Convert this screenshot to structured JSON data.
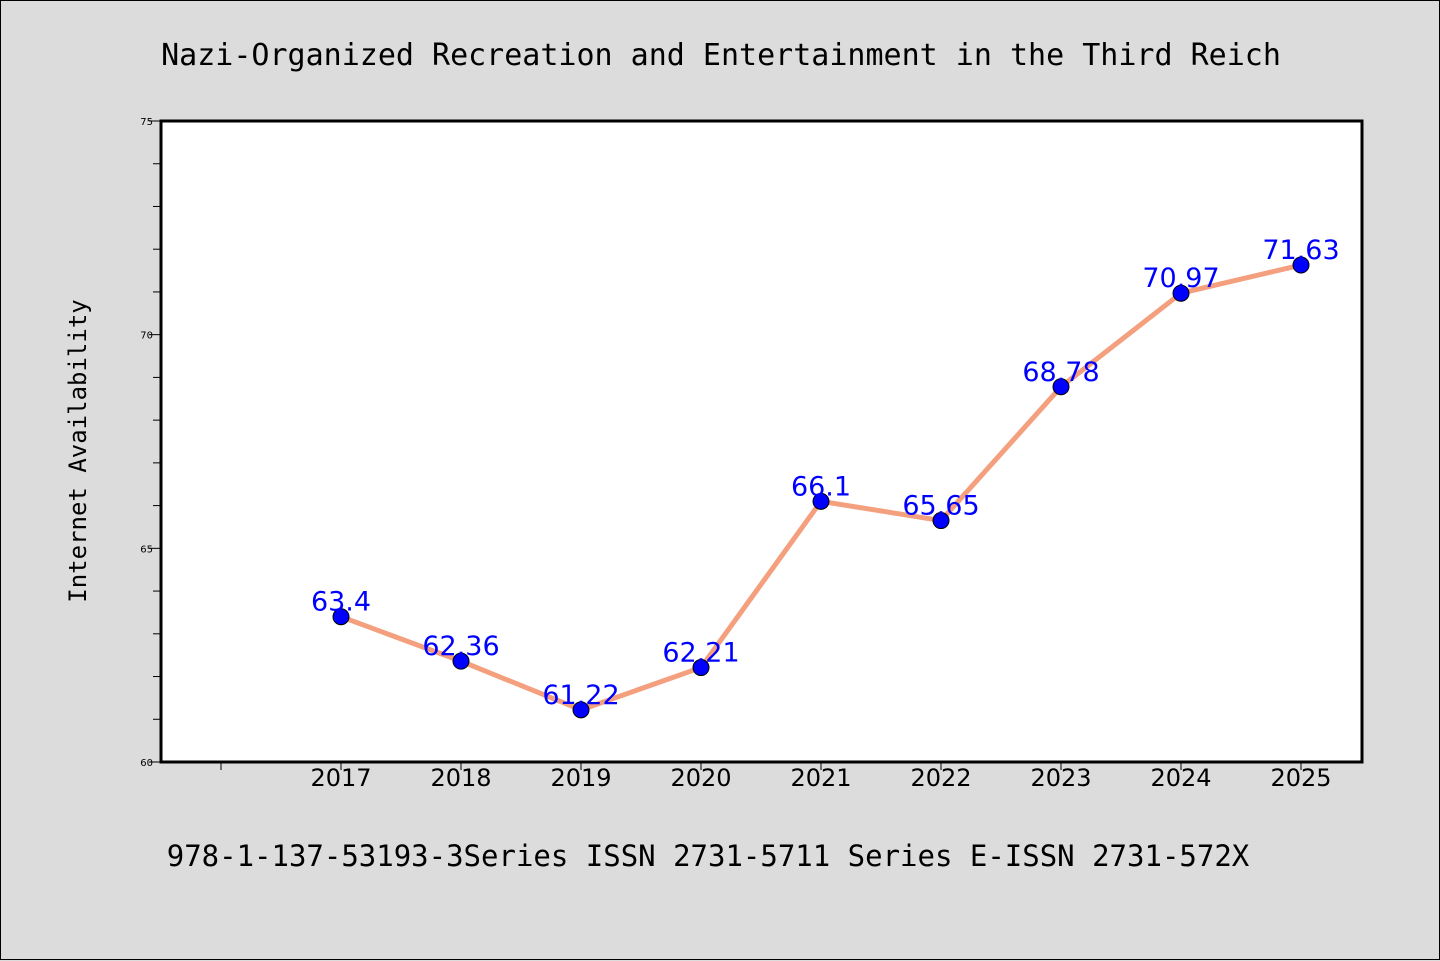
{
  "chart_data": {
    "type": "line",
    "title": "Nazi-Organized Recreation and Entertainment in the Third Reich",
    "ylabel": "Internet Availability",
    "xlabel": "",
    "footer": "978-1-137-53193-3Series ISSN 2731-5711 Series E-ISSN 2731-572X",
    "categories": [
      "2017",
      "2018",
      "2019",
      "2020",
      "2021",
      "2022",
      "2023",
      "2024",
      "2025"
    ],
    "values": [
      63.4,
      62.36,
      61.22,
      62.21,
      66.1,
      65.65,
      68.78,
      70.97,
      71.63
    ],
    "data_labels": [
      "63.4",
      "62.36",
      "61.22",
      "62.21",
      "66.1",
      "65.65",
      "68.78",
      "70.97",
      "71.63"
    ],
    "ylim": [
      60,
      75
    ],
    "yticks": [
      60,
      65,
      70,
      75
    ],
    "ytick_labels": [
      "60",
      "65",
      "70",
      "75"
    ],
    "grid": false,
    "colors": {
      "background": "#dcdcdc",
      "plot_background": "#ffffff",
      "line": "#f4a07e",
      "marker": "#0000ff",
      "data_label": "#0000ff",
      "text": "#000000"
    }
  }
}
